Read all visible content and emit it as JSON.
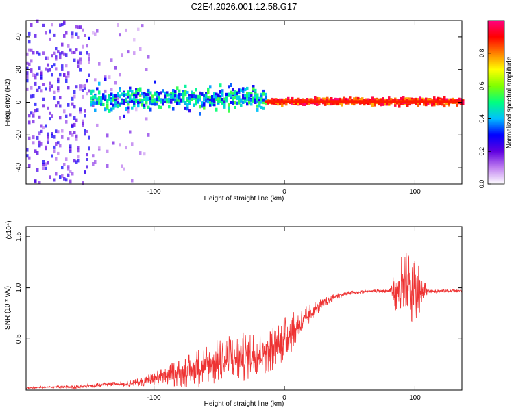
{
  "title": "C2E4.2026.001.12.58.G17",
  "chart_data": [
    {
      "type": "heatmap",
      "name": "spectrogram",
      "xlabel": "Height of straight line (km)",
      "ylabel": "Frequency (Hz)",
      "xlim": [
        -198,
        136
      ],
      "ylim": [
        -50,
        50
      ],
      "xticks": [
        -100,
        0,
        100
      ],
      "yticks": [
        -40,
        -20,
        0,
        20,
        40
      ],
      "colorbar": {
        "label": "Normalized spectral amplitude",
        "range": [
          0.0,
          1.0
        ],
        "ticks": [
          0.0,
          0.2,
          0.4,
          0.6,
          0.8
        ],
        "colors": [
          "#ffffff",
          "#c080f0",
          "#6000e0",
          "#0000ff",
          "#00c0ff",
          "#00ff80",
          "#80ff00",
          "#ffff00",
          "#ff8000",
          "#ff0000",
          "#ff0080"
        ]
      },
      "regions": [
        {
          "x_range": [
            -198,
            -150
          ],
          "freq_spread": 50,
          "amplitude": 0.2,
          "description": "dense noise"
        },
        {
          "x_range": [
            -150,
            -105
          ],
          "freq_spread": 50,
          "amplitude": 0.12,
          "description": "sparse noise"
        },
        {
          "x_range": [
            -150,
            -15
          ],
          "freq_center": 2,
          "freq_spread": 7,
          "amplitude": 0.45
        },
        {
          "x_range": [
            -15,
            136
          ],
          "freq_center": 0.5,
          "freq_spread": 2,
          "amplitude": 0.9
        }
      ]
    },
    {
      "type": "line",
      "name": "snr",
      "xlabel": "Height of straight line (km)",
      "ylabel": "SNR (10 * v/v)",
      "y_multiplier": "(x10⁴)",
      "xlim": [
        -198,
        136
      ],
      "ylim": [
        0,
        1.6
      ],
      "xticks": [
        -100,
        0,
        100
      ],
      "yticks": [
        0.5,
        1.0,
        1.5
      ],
      "ytick_labels": [
        "0.5",
        "1.0",
        "1.5"
      ],
      "series": [
        {
          "name": "SNR",
          "color": "#ee3333",
          "x": [
            -198,
            -180,
            -160,
            -150,
            -140,
            -130,
            -120,
            -110,
            -100,
            -90,
            -80,
            -70,
            -60,
            -50,
            -40,
            -30,
            -20,
            -10,
            -5,
            0,
            5,
            10,
            20,
            30,
            40,
            50,
            60,
            70,
            80,
            90,
            95,
            100,
            110,
            120,
            136
          ],
          "values": [
            0.02,
            0.03,
            0.03,
            0.04,
            0.05,
            0.06,
            0.06,
            0.08,
            0.11,
            0.14,
            0.17,
            0.2,
            0.24,
            0.28,
            0.3,
            0.33,
            0.36,
            0.4,
            0.45,
            0.5,
            0.56,
            0.62,
            0.75,
            0.85,
            0.92,
            0.95,
            0.96,
            0.97,
            0.97,
            0.98,
            0.98,
            0.98,
            0.97,
            0.97,
            0.97
          ],
          "noise_amplitude": [
            0.01,
            0.01,
            0.02,
            0.02,
            0.02,
            0.02,
            0.03,
            0.04,
            0.08,
            0.1,
            0.14,
            0.18,
            0.22,
            0.22,
            0.25,
            0.25,
            0.22,
            0.22,
            0.22,
            0.22,
            0.2,
            0.15,
            0.1,
            0.05,
            0.03,
            0.02,
            0.02,
            0.02,
            0.02,
            0.35,
            0.4,
            0.35,
            0.02,
            0.02,
            0.02
          ]
        }
      ]
    }
  ]
}
